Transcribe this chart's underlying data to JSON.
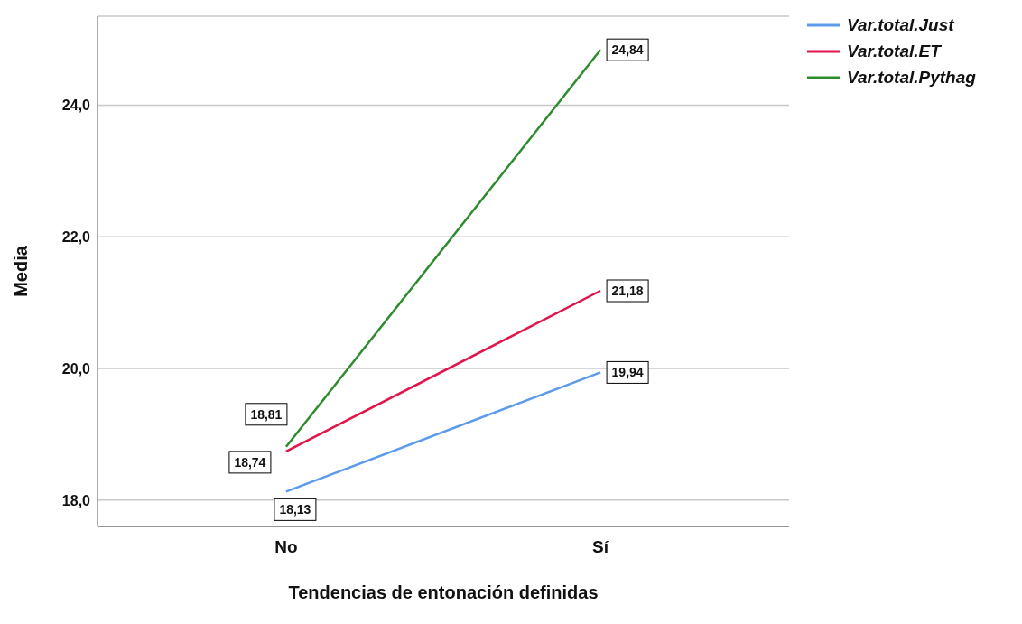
{
  "chart_data": {
    "type": "line",
    "xlabel": "Tendencias de entonación definidas",
    "ylabel": "Media",
    "categories": [
      "No",
      "Sí"
    ],
    "series": [
      {
        "name": "Var.total.Just",
        "color": "#5b9bea",
        "values": [
          18.13,
          19.94
        ],
        "value_labels": [
          "18,13",
          "19,94"
        ]
      },
      {
        "name": "Var.total.ET",
        "color": "#e2144a",
        "values": [
          18.74,
          21.18
        ],
        "value_labels": [
          "18,74",
          "21,18"
        ]
      },
      {
        "name": "Var.total.Pythag",
        "color": "#2e8b2e",
        "values": [
          18.81,
          24.84
        ],
        "value_labels": [
          "18,81",
          "24,84"
        ]
      }
    ],
    "ylim": [
      17.6,
      25.35
    ],
    "yticks": [
      {
        "value": 18,
        "label": "18,0"
      },
      {
        "value": 20,
        "label": "20,0"
      },
      {
        "value": 22,
        "label": "22,0"
      },
      {
        "value": 24,
        "label": "24,0"
      }
    ],
    "grid": "y",
    "legend": "top right",
    "marker": "none",
    "line_style": "solid"
  }
}
